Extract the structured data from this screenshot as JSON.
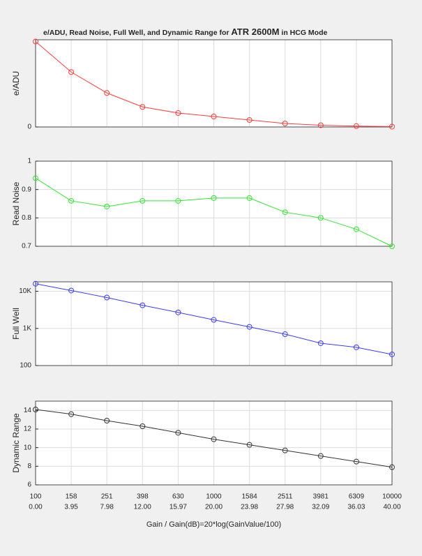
{
  "chart_data": [
    {
      "type": "line",
      "title": [
        "e/ADU, Read Noise, Full Well, and Dynamic Range for",
        "ATR 2600M",
        "in HCG Mode"
      ],
      "ylabel": "e/ADU",
      "color": "#ff3b3b",
      "values": [
        0.98,
        0.63,
        0.39,
        0.23,
        0.16,
        0.12,
        0.08,
        0.04,
        0.02,
        0.01,
        0.004
      ],
      "ylim": [
        0,
        1
      ],
      "yticks": [
        0
      ],
      "log": false,
      "grid": true
    },
    {
      "type": "line",
      "ylabel": "Read Noise",
      "color": "#33e633",
      "values": [
        0.94,
        0.86,
        0.84,
        0.86,
        0.86,
        0.87,
        0.87,
        0.82,
        0.8,
        0.76,
        0.7
      ],
      "ylim": [
        0.7,
        1
      ],
      "yticks": [
        0.7,
        0.8,
        0.9,
        1
      ],
      "log": false,
      "grid": true
    },
    {
      "type": "line",
      "ylabel": "Full Well",
      "color": "#3b3bff",
      "values": [
        16000,
        10500,
        6800,
        4200,
        2700,
        1700,
        1100,
        700,
        400,
        310,
        200
      ],
      "ylim": [
        100,
        18000
      ],
      "yticks": [
        100,
        {
          "value": 1000,
          "label": "1K"
        },
        {
          "value": 10000,
          "label": "10K"
        }
      ],
      "log": true,
      "grid": true
    },
    {
      "type": "line",
      "ylabel": "Dynamic Range",
      "color": "#333333",
      "values": [
        14.1,
        13.6,
        12.9,
        12.3,
        11.6,
        10.9,
        10.3,
        9.7,
        9.1,
        8.5,
        7.9
      ],
      "ylim": [
        6,
        15
      ],
      "yticks": [
        6,
        8,
        10,
        12,
        14
      ],
      "log": false,
      "grid": true,
      "categories": [
        "100",
        "158",
        "251",
        "398",
        "630",
        "1000",
        "1584",
        "2511",
        "3981",
        "6309",
        "10000"
      ],
      "category_sublabels": [
        "0.00",
        "3.95",
        "7.98",
        "12.00",
        "15.97",
        "20.00",
        "23.98",
        "27.98",
        "32.09",
        "36.03",
        "40.00"
      ],
      "xlabel": "Gain / Gain(dB)=20*log(GainValue/100)"
    }
  ]
}
